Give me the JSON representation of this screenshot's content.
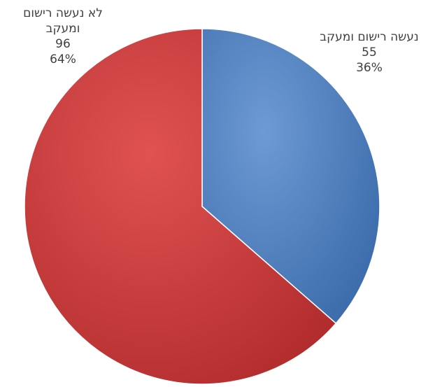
{
  "chart_data": {
    "type": "pie",
    "slices": [
      {
        "label": "נעשה רישום ומעקב",
        "value": 55,
        "percent": "36%",
        "color": "#4a7ebf"
      },
      {
        "label": "לא נעשה רישום ומעקב",
        "value": 96,
        "percent": "64%",
        "color": "#c8393a"
      }
    ],
    "start_angle_deg": 0,
    "direction": "clockwise",
    "legend": "none"
  },
  "labels": {
    "slice0": {
      "line1": "נעשה רישום ומעקב",
      "value": "55",
      "percent": "36%"
    },
    "slice1": {
      "line1": "לא נעשה רישום",
      "line2": "ומעקב",
      "value": "96",
      "percent": "64%"
    }
  }
}
